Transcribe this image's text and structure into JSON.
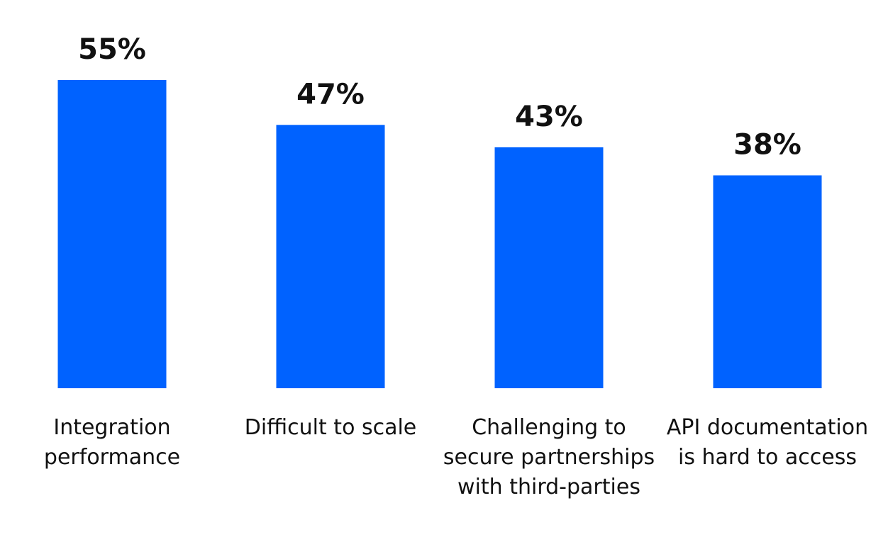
{
  "colors": {
    "bar": "#0062ff",
    "text": "#111111",
    "background": "#ffffff"
  },
  "chart_data": {
    "type": "bar",
    "title": "",
    "xlabel": "",
    "ylabel": "",
    "unit": "%",
    "ylim": [
      0,
      55
    ],
    "grid": false,
    "legend": "none",
    "categories": [
      [
        "Integration",
        "performance"
      ],
      [
        "Difficult to scale"
      ],
      [
        "Challenging to",
        "secure partnerships",
        "with third-parties"
      ],
      [
        "API documentation",
        "is hard to access"
      ]
    ],
    "values": [
      55,
      47,
      43,
      38
    ],
    "value_labels": [
      "55%",
      "47%",
      "43%",
      "38%"
    ]
  }
}
